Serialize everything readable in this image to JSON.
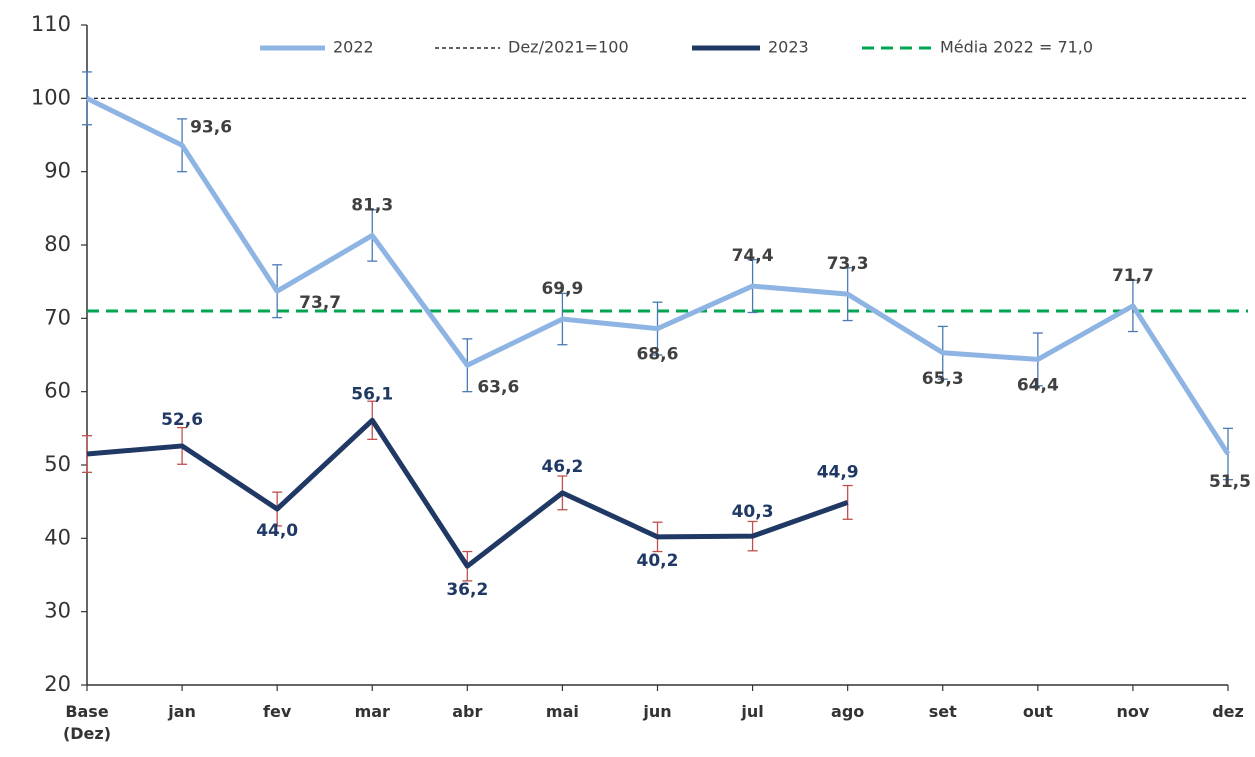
{
  "chart_data": {
    "type": "line",
    "categories": [
      "Base (Dez)",
      "jan",
      "fev",
      "mar",
      "abr",
      "mai",
      "jun",
      "jul",
      "ago",
      "set",
      "out",
      "nov",
      "dez"
    ],
    "series": [
      {
        "name": "2022",
        "color": "#8eb4e3",
        "error_color": "#4a7ab5",
        "label_color": "#404040",
        "values": [
          100,
          93.6,
          73.7,
          81.3,
          63.6,
          69.9,
          68.6,
          74.4,
          73.3,
          65.3,
          64.4,
          71.7,
          51.5
        ],
        "errors": [
          3.6,
          3.6,
          3.6,
          3.5,
          3.6,
          3.5,
          3.6,
          3.6,
          3.6,
          3.6,
          3.6,
          3.5,
          3.5
        ],
        "value_labels": [
          null,
          "93,6",
          "73,7",
          "81,3",
          "63,6",
          "69,9",
          "68,6",
          "74,4",
          "73,3",
          "65,3",
          "64,4",
          "71,7",
          "51,5"
        ]
      },
      {
        "name": "2023",
        "color": "#1f3864",
        "error_color": "#c0504d",
        "label_color": "#1f3864",
        "values": [
          51.5,
          52.6,
          44.0,
          56.1,
          36.2,
          46.2,
          40.2,
          40.3,
          44.9,
          null,
          null,
          null,
          null
        ],
        "errors": [
          2.5,
          2.5,
          2.3,
          2.6,
          2.0,
          2.3,
          2.0,
          2.0,
          2.3,
          null,
          null,
          null,
          null
        ],
        "value_labels": [
          null,
          "52,6",
          "44,0",
          "56,1",
          "36,2",
          "46,2",
          "40,2",
          "40,3",
          "44,9",
          null,
          null,
          null,
          null
        ]
      }
    ],
    "reference_lines": [
      {
        "name": "Dez/2021=100",
        "value": 100,
        "color": "#000000"
      },
      {
        "name": "Média 2022 = 71,0",
        "value": 71,
        "color": "#00a550"
      }
    ],
    "ylim": [
      20,
      110
    ],
    "yticks": [
      20,
      30,
      40,
      50,
      60,
      70,
      80,
      90,
      100,
      110
    ],
    "grid": false
  }
}
